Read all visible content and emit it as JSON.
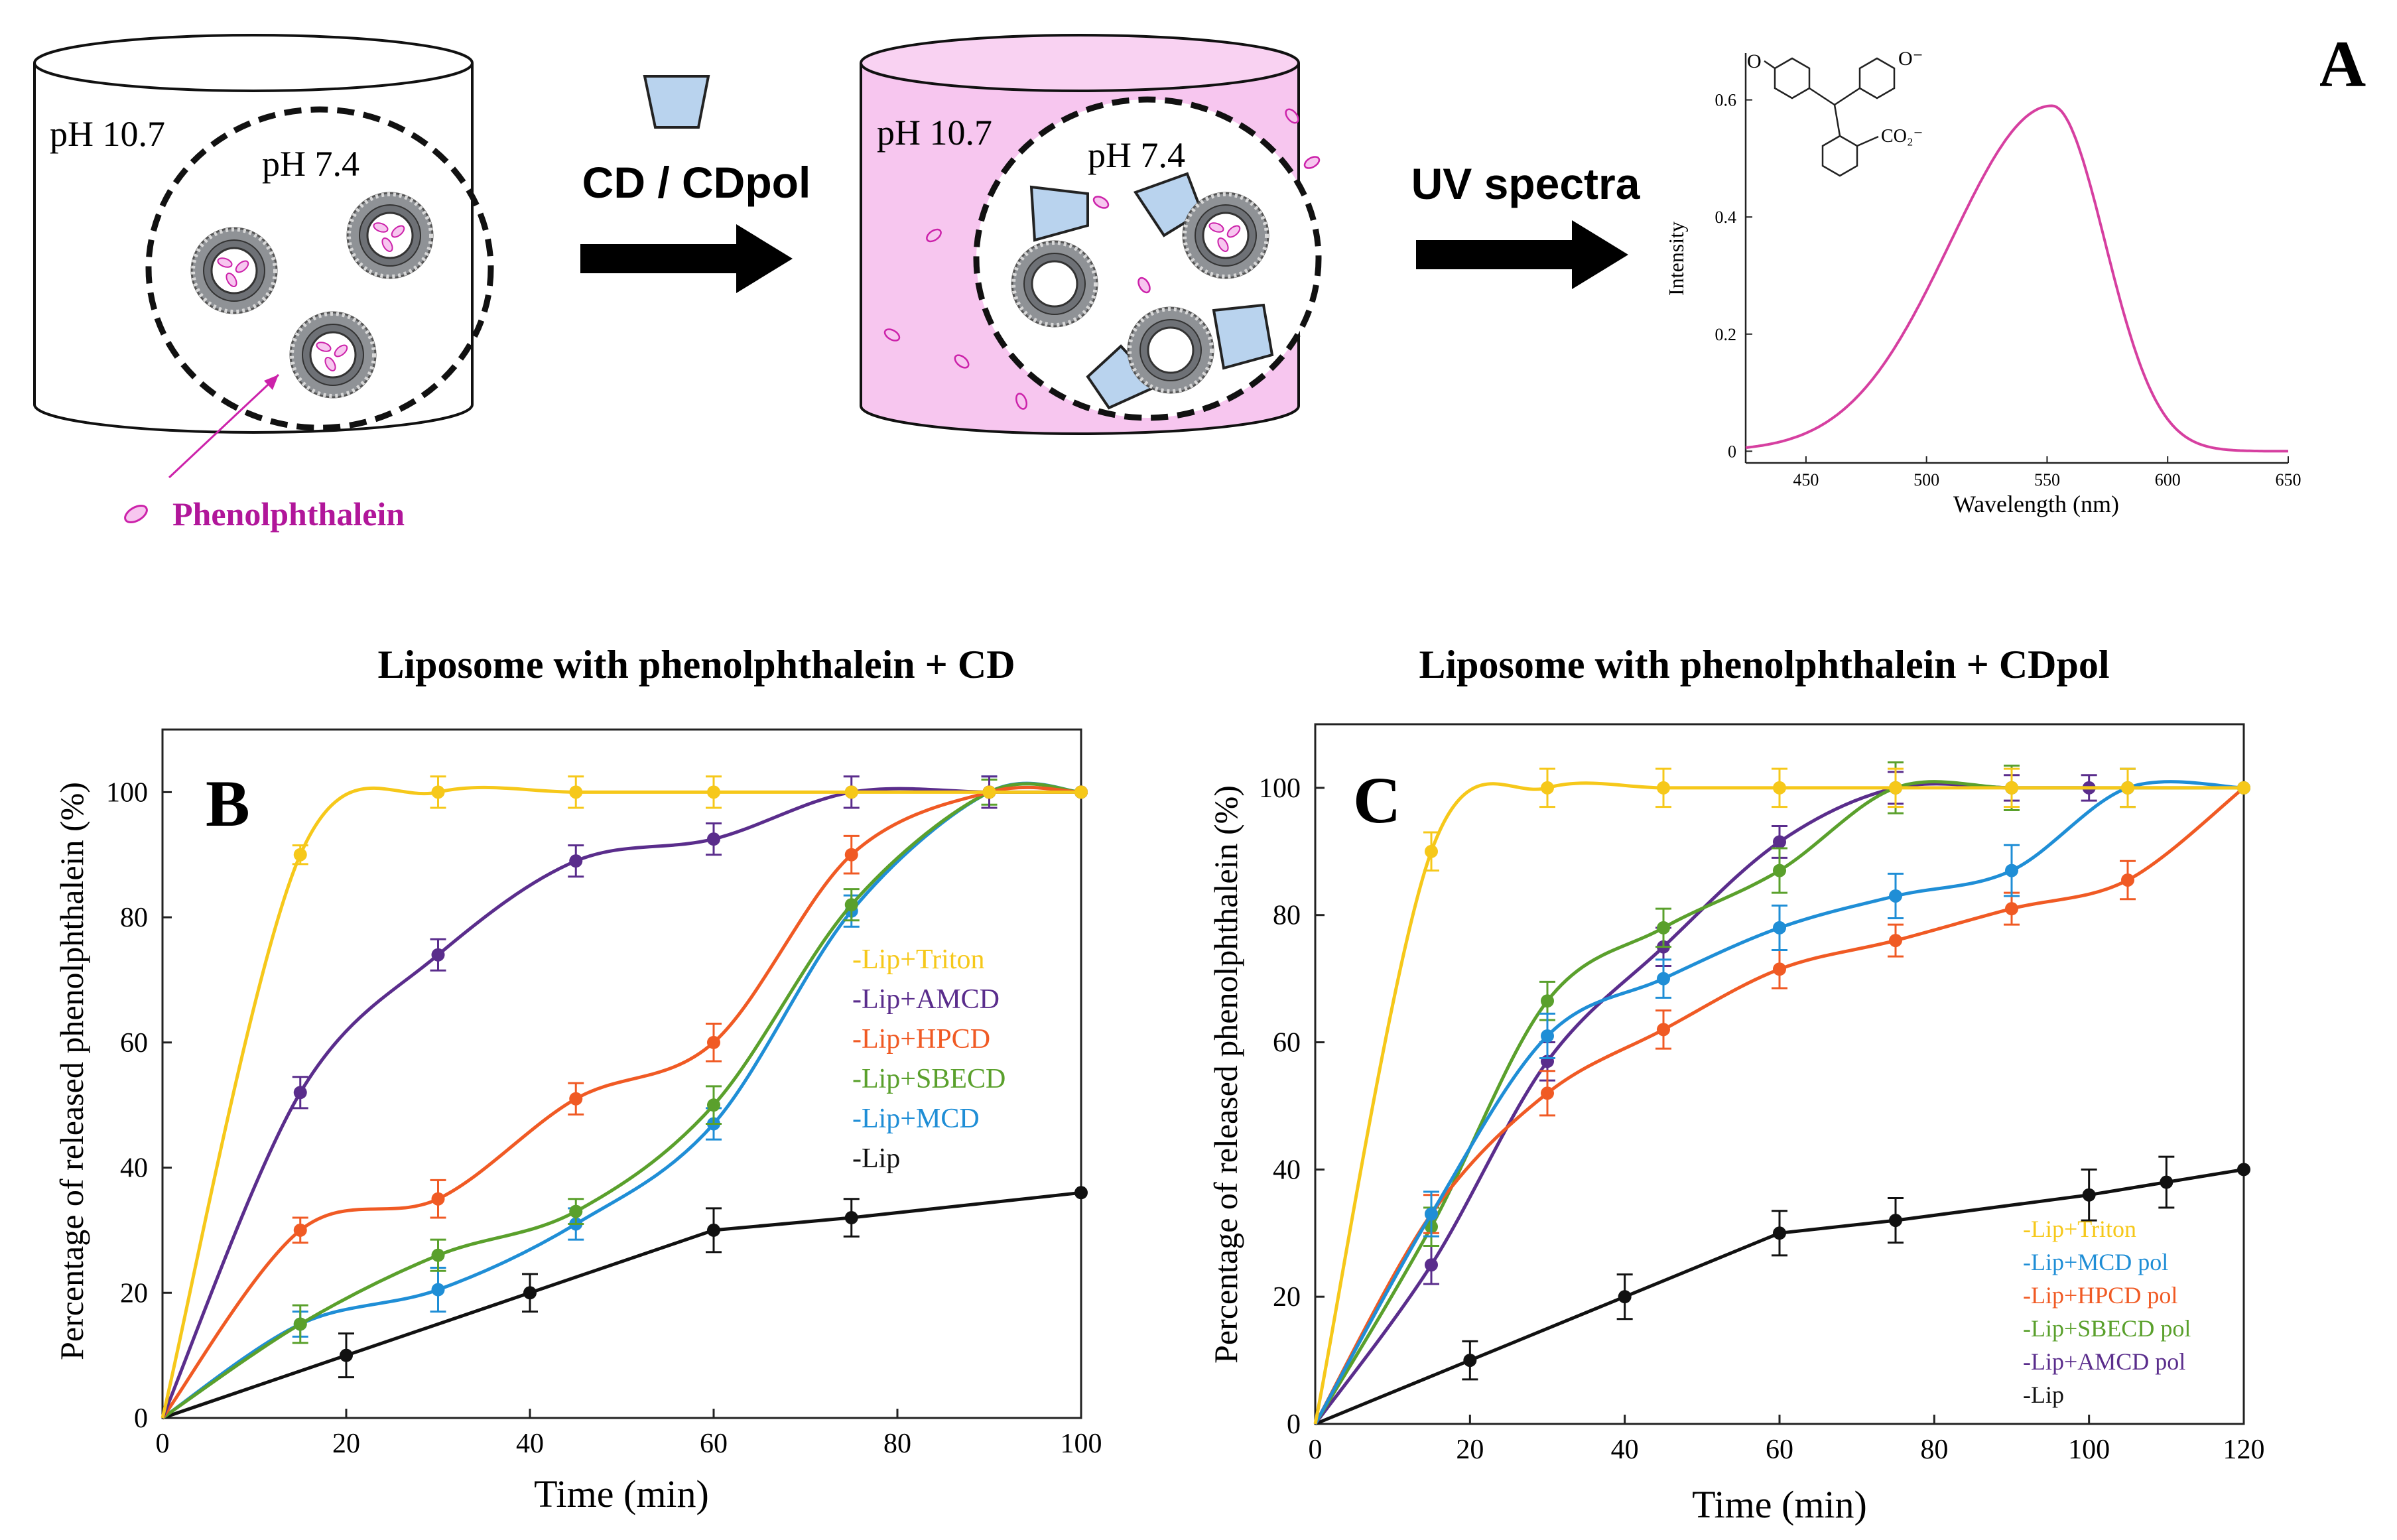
{
  "panel_a": {
    "letter": "A",
    "left_cylinder": {
      "outer_label": "pH 10.7",
      "inner_label": "pH 7.4"
    },
    "arrow1_label": "CD / CDpol",
    "right_cylinder": {
      "outer_label": "pH 10.7",
      "inner_label": "pH 7.4"
    },
    "arrow2_label": "UV spectra",
    "legend_label": "Phenolphthalein",
    "colors": {
      "pink_fill": "#f7c6ef",
      "cd_fill": "#b9d3ee",
      "phenol": "#cc22aa"
    },
    "spectrum": {
      "type": "line",
      "xlabel": "Wavelength (nm)",
      "ylabel": "Intensity",
      "x_ticks": [
        "450",
        "500",
        "550",
        "600",
        "650"
      ],
      "y_ticks": [
        "0",
        "0.2",
        "0.4",
        "0.6"
      ],
      "xlim": [
        425,
        650
      ],
      "ylim": [
        -0.02,
        0.68
      ],
      "peak_x": 552,
      "peak_y": 0.59,
      "color": "#d63fa0",
      "molecule_labels": {
        "top_left": "O",
        "top_right": "O⁻",
        "carboxylate": "CO₂⁻"
      }
    }
  },
  "chart_data": [
    {
      "type": "line",
      "panel": "B",
      "title": "Liposome with phenolphthalein + CD",
      "xlabel": "Time (min)",
      "ylabel": "Percentage of released phenolphthalein (%)",
      "xlim": [
        0,
        100
      ],
      "ylim": [
        0,
        110
      ],
      "x_ticks": [
        "0",
        "20",
        "40",
        "60",
        "80",
        "100"
      ],
      "y_ticks": [
        "0",
        "20",
        "40",
        "60",
        "80",
        "100"
      ],
      "series": [
        {
          "name": "-Lip+Triton",
          "color": "#f6c81a",
          "x": [
            0,
            15,
            30,
            45,
            60,
            75,
            90,
            100
          ],
          "values": [
            0,
            90,
            100,
            100,
            100,
            100,
            100,
            100
          ],
          "err": [
            0,
            1.5,
            2.5,
            2.5,
            2.5,
            0,
            0,
            0
          ]
        },
        {
          "name": "-Lip+AMCD",
          "color": "#5a2d8c",
          "x": [
            0,
            15,
            30,
            45,
            60,
            75,
            90,
            100
          ],
          "values": [
            0,
            52,
            74,
            89,
            92.5,
            100,
            100,
            100
          ],
          "err": [
            0,
            2.5,
            2.5,
            2.5,
            2.5,
            2.5,
            2.5,
            0
          ]
        },
        {
          "name": "-Lip+HPCD",
          "color": "#f05a24",
          "x": [
            0,
            15,
            30,
            45,
            60,
            75,
            90,
            100
          ],
          "values": [
            0,
            30,
            35,
            51,
            60,
            90,
            100,
            100
          ],
          "err": [
            0,
            2,
            3,
            2.5,
            3,
            3,
            0,
            0
          ]
        },
        {
          "name": "-Lip+SBECD",
          "color": "#5aa02c",
          "x": [
            0,
            15,
            30,
            45,
            60,
            75,
            90,
            100
          ],
          "values": [
            0,
            15,
            26,
            33,
            50,
            82,
            100,
            100
          ],
          "err": [
            0,
            3,
            2.5,
            2,
            3,
            2.5,
            2,
            0
          ]
        },
        {
          "name": "-Lip+MCD",
          "color": "#1f8ed6",
          "x": [
            0,
            15,
            30,
            45,
            60,
            75,
            90,
            100
          ],
          "values": [
            0,
            15,
            20.5,
            31,
            47,
            81,
            100,
            100
          ],
          "err": [
            0,
            2,
            3.5,
            2.5,
            2.5,
            2.5,
            2.5,
            0
          ]
        },
        {
          "name": "-Lip",
          "color": "#111111",
          "x": [
            0,
            20,
            40,
            60,
            75,
            100
          ],
          "values": [
            0,
            10,
            20,
            30,
            32,
            36
          ],
          "err": [
            0,
            3.5,
            3,
            3.5,
            3,
            0
          ]
        }
      ],
      "legend_location": "center-right"
    },
    {
      "type": "line",
      "panel": "C",
      "title": "Liposome with phenolphthalein + CDpol",
      "xlabel": "Time (min)",
      "ylabel": "Percentage of released phenolphthalein (%)",
      "xlim": [
        0,
        120
      ],
      "ylim": [
        0,
        110
      ],
      "x_ticks": [
        "0",
        "20",
        "40",
        "60",
        "80",
        "100",
        "120"
      ],
      "y_ticks": [
        "0",
        "20",
        "40",
        "60",
        "80",
        "100"
      ],
      "series": [
        {
          "name": "-Lip+Triton",
          "color": "#f6c81a",
          "x": [
            0,
            15,
            30,
            45,
            60,
            75,
            90,
            105,
            120
          ],
          "values": [
            0,
            90,
            100,
            100,
            100,
            100,
            100,
            100,
            100
          ],
          "err": [
            0,
            3,
            3,
            3,
            3,
            3,
            3,
            3,
            0
          ]
        },
        {
          "name": "-Lip+MCD pol",
          "color": "#1f8ed6",
          "x": [
            0,
            15,
            30,
            45,
            60,
            75,
            90,
            105,
            120
          ],
          "values": [
            0,
            33,
            61,
            70,
            78,
            83,
            87,
            100,
            100
          ],
          "err": [
            0,
            3.5,
            3.5,
            3,
            3.5,
            3.5,
            4,
            3,
            0
          ]
        },
        {
          "name": "-Lip+HPCD pol",
          "color": "#f05a24",
          "x": [
            0,
            15,
            30,
            45,
            60,
            75,
            90,
            105,
            120
          ],
          "values": [
            0,
            33,
            52,
            62,
            71.5,
            76,
            81,
            85.5,
            100
          ],
          "err": [
            0,
            3,
            3.5,
            3,
            3,
            2.5,
            2.5,
            3,
            0
          ]
        },
        {
          "name": "-Lip+SBECD pol",
          "color": "#5aa02c",
          "x": [
            0,
            15,
            30,
            45,
            60,
            75,
            90,
            105,
            120
          ],
          "values": [
            0,
            31,
            66.5,
            78,
            87,
            100,
            100,
            100,
            100
          ],
          "err": [
            0,
            3,
            3,
            3,
            3.5,
            4,
            3.5,
            3,
            0
          ]
        },
        {
          "name": "-Lip+AMCD pol",
          "color": "#5a2d8c",
          "x": [
            0,
            15,
            30,
            45,
            60,
            75,
            90,
            100
          ],
          "values": [
            0,
            25,
            57,
            75,
            91.5,
            100,
            100,
            100
          ],
          "err": [
            0,
            3,
            3,
            3,
            2.5,
            2.5,
            2,
            2
          ]
        },
        {
          "name": "-Lip",
          "color": "#111111",
          "x": [
            0,
            20,
            40,
            60,
            75,
            100,
            110,
            120
          ],
          "values": [
            0,
            10,
            20,
            30,
            32,
            36,
            38,
            40
          ],
          "err": [
            0,
            3,
            3.5,
            3.5,
            3.5,
            4,
            4,
            0
          ]
        }
      ],
      "legend_location": "bottom-right"
    }
  ]
}
